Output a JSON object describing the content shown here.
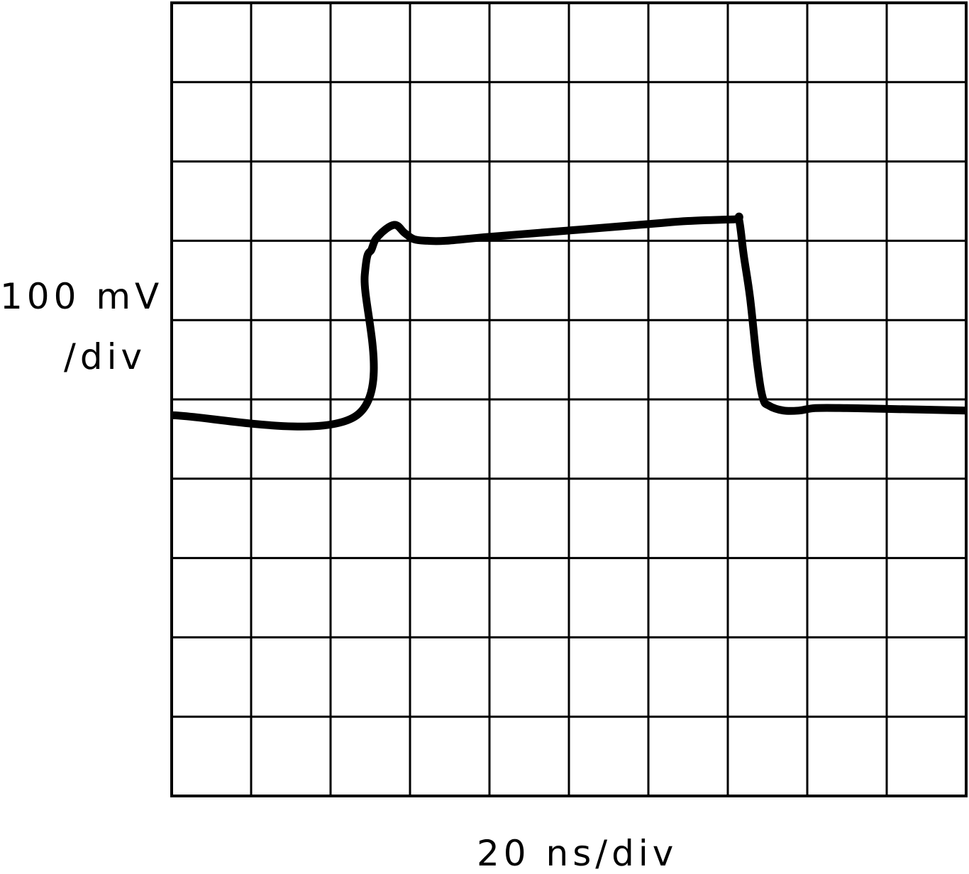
{
  "chart_data": {
    "type": "line",
    "title": "",
    "xlabel": "20 ns/div",
    "ylabel_line1": "100 mV",
    "ylabel_line2": "/div",
    "x_unit": "div",
    "y_unit": "div",
    "xlim": [
      0,
      10
    ],
    "ylim": [
      -5,
      5
    ],
    "grid": true,
    "divisions": {
      "x": 10,
      "y": 10
    },
    "series": [
      {
        "values_x": [
          0.0,
          2.33,
          2.43,
          2.52,
          2.6,
          2.8,
          2.93,
          3.05,
          3.22,
          3.45,
          4.0,
          5.0,
          6.0,
          6.5,
          7.08,
          7.14,
          7.2,
          7.28,
          7.37,
          7.44,
          7.52,
          7.7,
          7.9,
          8.1,
          8.5,
          9.0,
          10.0
        ],
        "values_y": [
          -0.2,
          -0.2,
          1.57,
          1.9,
          2.06,
          2.2,
          2.1,
          2.02,
          2.0,
          2.0,
          2.05,
          2.13,
          2.21,
          2.25,
          2.27,
          2.27,
          1.82,
          1.28,
          0.45,
          0.02,
          -0.08,
          -0.14,
          -0.14,
          -0.11,
          -0.11,
          -0.12,
          -0.14
        ]
      }
    ]
  },
  "colors": {
    "trace": "#000000",
    "grid": "#000000",
    "background": "#ffffff"
  }
}
